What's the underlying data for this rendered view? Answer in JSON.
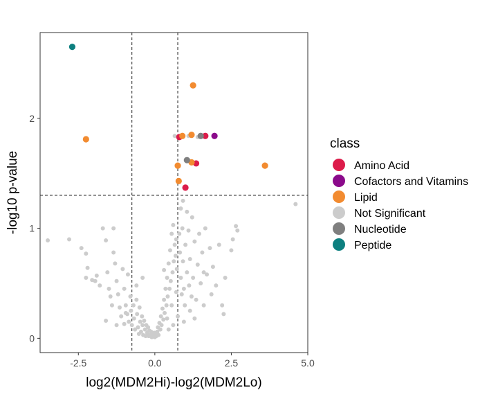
{
  "chart_data": {
    "type": "scatter",
    "title": "",
    "xlabel": "log2(MDM2Hi)-log2(MDM2Lo)",
    "ylabel": "-log10 p-value",
    "xlim": [
      -3.75,
      5.0
    ],
    "ylim": [
      -0.13,
      2.78
    ],
    "x_ticks": [
      -2.5,
      0.0,
      2.5,
      5.0
    ],
    "x_tick_labels": [
      "-2.5",
      "0.0",
      "2.5",
      "5.0"
    ],
    "y_ticks": [
      0,
      1,
      2
    ],
    "y_tick_labels": [
      "0",
      "1",
      "2"
    ],
    "thresholds": {
      "x": [
        -0.75,
        0.75
      ],
      "y": 1.3
    },
    "grid": false,
    "legend": {
      "title": "class",
      "position": "right",
      "entries": [
        {
          "label": "Amino Acid",
          "color": "#DC1C4A"
        },
        {
          "label": "Cofactors and Vitamins",
          "color": "#8B0A8B"
        },
        {
          "label": "Lipid",
          "color": "#F28B30"
        },
        {
          "label": "Not Significant",
          "color": "#CCCCCC"
        },
        {
          "label": "Nucleotide",
          "color": "#7F7F7F"
        },
        {
          "label": "Peptide",
          "color": "#0D7F7F"
        }
      ]
    },
    "series": [
      {
        "name": "Not Significant",
        "color": "#CCCCCC",
        "points": [
          [
            -3.5,
            0.89
          ],
          [
            -2.8,
            0.9
          ],
          [
            -2.25,
            0.77
          ],
          [
            -2.2,
            0.64
          ],
          [
            -2.25,
            0.55
          ],
          [
            -2.05,
            0.53
          ],
          [
            -1.95,
            0.52
          ],
          [
            -2.4,
            0.82
          ],
          [
            -1.9,
            0.57
          ],
          [
            -1.8,
            0.48
          ],
          [
            -1.7,
            1.0
          ],
          [
            -1.6,
            0.89
          ],
          [
            -1.55,
            0.6
          ],
          [
            -1.5,
            0.45
          ],
          [
            -1.45,
            0.38
          ],
          [
            -1.4,
            0.3
          ],
          [
            -1.35,
            0.78
          ],
          [
            -1.3,
            0.68
          ],
          [
            -1.25,
            0.52
          ],
          [
            -1.2,
            0.4
          ],
          [
            -1.15,
            0.28
          ],
          [
            -1.1,
            0.2
          ],
          [
            -1.05,
            0.63
          ],
          [
            -1.0,
            0.45
          ],
          [
            -0.95,
            0.3
          ],
          [
            -0.9,
            0.22
          ],
          [
            -0.88,
            0.58
          ],
          [
            -0.85,
            0.15
          ],
          [
            -0.8,
            0.38
          ],
          [
            -0.78,
            0.25
          ],
          [
            -0.75,
            0.12
          ],
          [
            -0.7,
            0.3
          ],
          [
            -0.68,
            0.18
          ],
          [
            -0.65,
            0.08
          ],
          [
            -0.6,
            0.35
          ],
          [
            -0.58,
            0.22
          ],
          [
            -0.55,
            0.1
          ],
          [
            -0.52,
            0.04
          ],
          [
            -0.5,
            0.28
          ],
          [
            -0.48,
            0.15
          ],
          [
            -0.45,
            0.06
          ],
          [
            -0.42,
            0.2
          ],
          [
            -0.4,
            0.12
          ],
          [
            -0.38,
            0.03
          ],
          [
            -0.35,
            0.16
          ],
          [
            -0.32,
            0.08
          ],
          [
            -0.3,
            0.02
          ],
          [
            -0.28,
            0.12
          ],
          [
            -0.25,
            0.05
          ],
          [
            -0.22,
            0.1
          ],
          [
            -0.2,
            0.02
          ],
          [
            -0.18,
            0.07
          ],
          [
            -0.15,
            0.03
          ],
          [
            -0.12,
            0.06
          ],
          [
            -0.1,
            0.01
          ],
          [
            -0.08,
            0.04
          ],
          [
            -0.05,
            0.02
          ],
          [
            -0.02,
            0.05
          ],
          [
            0.0,
            0.01
          ],
          [
            0.02,
            0.03
          ],
          [
            0.05,
            0.02
          ],
          [
            0.08,
            0.06
          ],
          [
            0.1,
            0.1
          ],
          [
            0.12,
            0.03
          ],
          [
            0.15,
            0.14
          ],
          [
            0.18,
            0.08
          ],
          [
            0.2,
            0.2
          ],
          [
            0.22,
            0.12
          ],
          [
            0.25,
            0.27
          ],
          [
            0.28,
            0.17
          ],
          [
            0.3,
            0.35
          ],
          [
            0.32,
            0.23
          ],
          [
            0.35,
            0.45
          ],
          [
            0.38,
            0.3
          ],
          [
            0.4,
            0.55
          ],
          [
            0.42,
            0.38
          ],
          [
            0.45,
            0.68
          ],
          [
            0.48,
            0.45
          ],
          [
            0.5,
            0.8
          ],
          [
            0.52,
            0.52
          ],
          [
            0.55,
            0.95
          ],
          [
            0.58,
            0.6
          ],
          [
            0.6,
            1.03
          ],
          [
            0.62,
            0.7
          ],
          [
            0.65,
            0.85
          ],
          [
            0.68,
            0.75
          ],
          [
            0.7,
            0.9
          ],
          [
            0.72,
            0.63
          ],
          [
            0.8,
            0.95
          ],
          [
            0.82,
            0.78
          ],
          [
            0.85,
            0.55
          ],
          [
            0.88,
            0.4
          ],
          [
            0.9,
            1.0
          ],
          [
            0.92,
            0.7
          ],
          [
            0.95,
            0.45
          ],
          [
            0.98,
            0.3
          ],
          [
            1.0,
            0.85
          ],
          [
            1.05,
            0.6
          ],
          [
            1.1,
            0.98
          ],
          [
            1.12,
            0.48
          ],
          [
            1.15,
            0.72
          ],
          [
            1.2,
            0.38
          ],
          [
            1.22,
            1.1
          ],
          [
            1.25,
            0.55
          ],
          [
            1.3,
            0.88
          ],
          [
            1.35,
            0.35
          ],
          [
            1.4,
            0.67
          ],
          [
            1.45,
            0.95
          ],
          [
            1.5,
            0.5
          ],
          [
            1.55,
            0.78
          ],
          [
            1.6,
            0.3
          ],
          [
            1.65,
            1.0
          ],
          [
            1.7,
            0.58
          ],
          [
            1.8,
            0.82
          ],
          [
            1.85,
            0.4
          ],
          [
            1.9,
            0.65
          ],
          [
            2.0,
            0.48
          ],
          [
            2.1,
            0.85
          ],
          [
            2.2,
            0.3
          ],
          [
            2.25,
            0.22
          ],
          [
            2.3,
            0.55
          ],
          [
            2.55,
            0.9
          ],
          [
            2.65,
            1.02
          ],
          [
            2.7,
            0.98
          ],
          [
            2.5,
            0.8
          ],
          [
            1.1,
            1.84
          ],
          [
            0.65,
            1.84
          ],
          [
            1.4,
            1.83
          ],
          [
            4.6,
            1.22
          ],
          [
            -1.35,
            1.0
          ],
          [
            -0.95,
            0.23
          ],
          [
            -1.0,
            0.13
          ],
          [
            -1.6,
            0.16
          ],
          [
            -0.4,
            0.55
          ],
          [
            0.3,
            0.62
          ],
          [
            0.55,
            0.3
          ],
          [
            0.95,
            0.15
          ],
          [
            1.15,
            0.25
          ],
          [
            1.3,
            0.18
          ],
          [
            1.6,
            0.6
          ],
          [
            0.7,
            0.42
          ],
          [
            0.4,
            0.18
          ],
          [
            -0.6,
            0.48
          ],
          [
            -1.25,
            0.12
          ],
          [
            0.85,
            1.18
          ],
          [
            0.92,
            1.25
          ],
          [
            1.05,
            1.15
          ],
          [
            0.75,
            0.2
          ],
          [
            0.6,
            0.12
          ],
          [
            0.45,
            0.08
          ]
        ]
      },
      {
        "name": "Amino Acid",
        "color": "#DC1C4A",
        "points": [
          [
            0.8,
            1.83
          ],
          [
            1.65,
            1.84
          ],
          [
            1.35,
            1.59
          ],
          [
            1.0,
            1.37
          ]
        ]
      },
      {
        "name": "Cofactors and Vitamins",
        "color": "#8B0A8B",
        "points": [
          [
            1.95,
            1.84
          ]
        ]
      },
      {
        "name": "Lipid",
        "color": "#F28B30",
        "points": [
          [
            -2.25,
            1.81
          ],
          [
            1.25,
            2.3
          ],
          [
            0.9,
            1.84
          ],
          [
            1.2,
            1.85
          ],
          [
            1.2,
            1.6
          ],
          [
            0.75,
            1.57
          ],
          [
            0.78,
            1.43
          ],
          [
            3.6,
            1.57
          ]
        ]
      },
      {
        "name": "Nucleotide",
        "color": "#7F7F7F",
        "points": [
          [
            1.05,
            1.62
          ],
          [
            1.5,
            1.84
          ]
        ]
      },
      {
        "name": "Peptide",
        "color": "#0D7F7F",
        "points": [
          [
            -2.7,
            2.65
          ]
        ]
      }
    ]
  }
}
